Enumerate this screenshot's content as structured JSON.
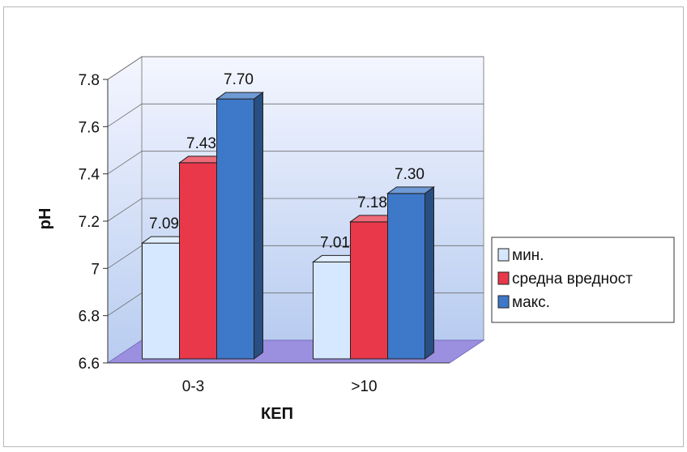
{
  "chart_data": {
    "type": "bar",
    "categories": [
      "0-3",
      ">10"
    ],
    "series": [
      {
        "name": "мин.",
        "values": [
          7.09,
          7.01
        ],
        "labels": [
          "7.09",
          "7.01"
        ],
        "color": "#d6e8ff"
      },
      {
        "name": "средна вредност",
        "values": [
          7.43,
          7.18
        ],
        "labels": [
          "7.43",
          "7.18"
        ],
        "color": "#e8384a"
      },
      {
        "name": "макс.",
        "values": [
          7.7,
          7.3
        ],
        "labels": [
          "7.70",
          "7.30"
        ],
        "color": "#3e78c8"
      }
    ],
    "title": "",
    "xlabel": "КЕП",
    "ylabel": "pH",
    "ylim": [
      6.6,
      7.8
    ],
    "yticks": [
      "6.6",
      "6.8",
      "7",
      "7.2",
      "7.4",
      "7.6",
      "7.8"
    ],
    "grid": true,
    "legend_position": "right",
    "style": "3d-clustered-column",
    "colors": {
      "floor": "#9b8fe0",
      "wall_top": "#f4f6ff",
      "wall_bottom": "#b8ccf0"
    }
  }
}
